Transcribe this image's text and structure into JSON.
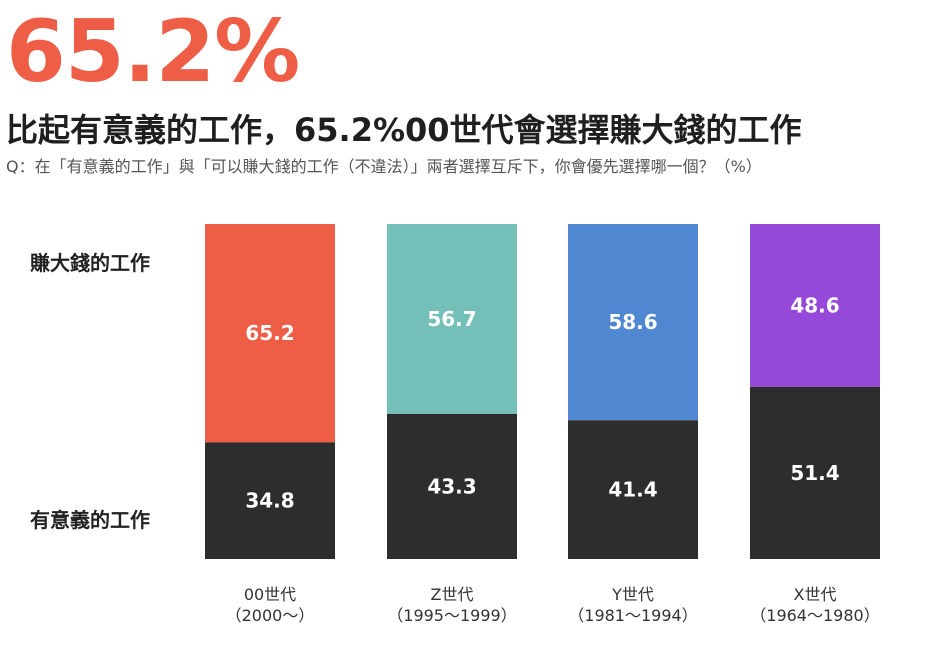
{
  "header": {
    "big_number": "65.2%",
    "headline": "比起有意義的工作，65.2%00世代會選擇賺大錢的工作",
    "question": "Q：在「有意義的工作」與「可以賺大錢的工作（不違法）」兩者選擇互斥下，你會優先選擇哪一個？（%）"
  },
  "chart_data": {
    "type": "bar",
    "stacked": true,
    "unit": "%",
    "ylim": [
      0,
      100
    ],
    "grid": false,
    "categories": [
      {
        "name": "00世代",
        "range": "（2000～）"
      },
      {
        "name": "Z世代",
        "range": "（1995～1999）"
      },
      {
        "name": "Y世代",
        "range": "（1981～1994）"
      },
      {
        "name": "X世代",
        "range": "（1964～1980）"
      }
    ],
    "series": [
      {
        "name": "有意義的工作",
        "values": [
          34.8,
          43.3,
          41.4,
          51.4
        ],
        "colors": [
          "#2d2d2d",
          "#2d2d2d",
          "#2d2d2d",
          "#2d2d2d"
        ]
      },
      {
        "name": "賺大錢的工作",
        "values": [
          65.2,
          56.7,
          58.6,
          48.6
        ],
        "colors": [
          "#ee5e47",
          "#74bfb7",
          "#5087d1",
          "#9549d8"
        ]
      }
    ]
  }
}
